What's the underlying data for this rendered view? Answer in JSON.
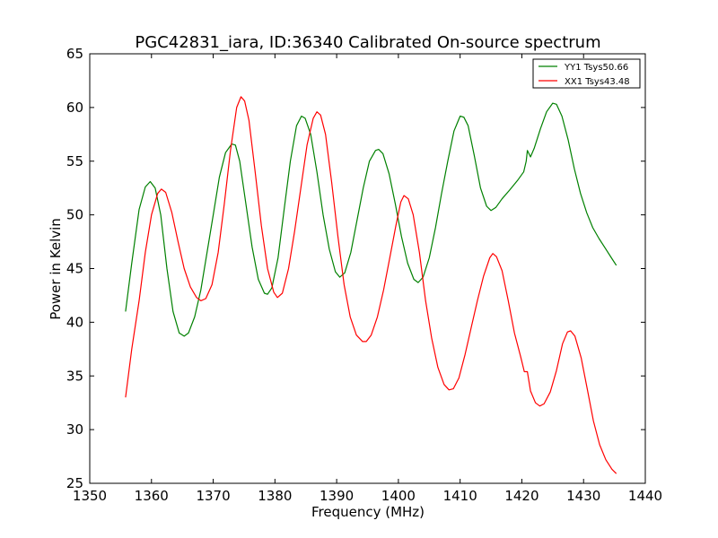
{
  "chart_data": {
    "type": "line",
    "title": "PGC42831_iara, ID:36340 Calibrated On-source spectrum",
    "xlabel": "Frequency (MHz)",
    "ylabel": "Power in Kelvin",
    "xlim": [
      1350,
      1440
    ],
    "ylim": [
      25,
      65
    ],
    "xticks": [
      1350,
      1360,
      1370,
      1380,
      1390,
      1400,
      1410,
      1420,
      1430,
      1440
    ],
    "yticks": [
      25,
      30,
      35,
      40,
      45,
      50,
      55,
      60,
      65
    ],
    "grid": false,
    "legend": "top-right",
    "series": [
      {
        "name": "YY1 Tsys50.66",
        "color": "#008000",
        "points": [
          [
            1355.8,
            41.0
          ],
          [
            1356.8,
            45.5
          ],
          [
            1358.0,
            50.5
          ],
          [
            1359.0,
            52.6
          ],
          [
            1359.8,
            53.1
          ],
          [
            1360.6,
            52.5
          ],
          [
            1361.5,
            50.0
          ],
          [
            1362.5,
            45.0
          ],
          [
            1363.5,
            41.0
          ],
          [
            1364.5,
            39.0
          ],
          [
            1365.3,
            38.7
          ],
          [
            1366.0,
            39.0
          ],
          [
            1367.0,
            40.5
          ],
          [
            1368.0,
            43.0
          ],
          [
            1369.0,
            46.5
          ],
          [
            1370.0,
            50.0
          ],
          [
            1371.0,
            53.5
          ],
          [
            1372.0,
            55.8
          ],
          [
            1373.0,
            56.6
          ],
          [
            1373.6,
            56.5
          ],
          [
            1374.3,
            55.0
          ],
          [
            1375.3,
            51.0
          ],
          [
            1376.3,
            47.0
          ],
          [
            1377.3,
            44.0
          ],
          [
            1378.3,
            42.7
          ],
          [
            1378.8,
            42.6
          ],
          [
            1379.5,
            43.2
          ],
          [
            1380.5,
            46.0
          ],
          [
            1381.5,
            50.5
          ],
          [
            1382.5,
            55.0
          ],
          [
            1383.5,
            58.3
          ],
          [
            1384.3,
            59.2
          ],
          [
            1384.9,
            59.0
          ],
          [
            1385.8,
            57.5
          ],
          [
            1386.8,
            54.0
          ],
          [
            1387.8,
            50.0
          ],
          [
            1388.8,
            46.8
          ],
          [
            1389.8,
            44.7
          ],
          [
            1390.5,
            44.2
          ],
          [
            1391.3,
            44.6
          ],
          [
            1392.3,
            46.5
          ],
          [
            1393.3,
            49.5
          ],
          [
            1394.3,
            52.5
          ],
          [
            1395.3,
            55.0
          ],
          [
            1396.3,
            56.0
          ],
          [
            1396.8,
            56.1
          ],
          [
            1397.5,
            55.7
          ],
          [
            1398.5,
            53.8
          ],
          [
            1399.5,
            51.0
          ],
          [
            1400.5,
            48.0
          ],
          [
            1401.5,
            45.5
          ],
          [
            1402.5,
            44.0
          ],
          [
            1403.2,
            43.7
          ],
          [
            1404.0,
            44.2
          ],
          [
            1405.0,
            46.0
          ],
          [
            1406.0,
            48.8
          ],
          [
            1407.0,
            52.0
          ],
          [
            1408.0,
            55.0
          ],
          [
            1409.0,
            57.8
          ],
          [
            1410.0,
            59.2
          ],
          [
            1410.6,
            59.1
          ],
          [
            1411.3,
            58.3
          ],
          [
            1412.3,
            55.5
          ],
          [
            1413.3,
            52.5
          ],
          [
            1414.3,
            50.8
          ],
          [
            1415.0,
            50.4
          ],
          [
            1415.8,
            50.7
          ],
          [
            1416.8,
            51.5
          ],
          [
            1418.0,
            52.3
          ],
          [
            1419.3,
            53.2
          ],
          [
            1420.3,
            54.0
          ],
          [
            1420.7,
            55.0
          ],
          [
            1420.9,
            56.0
          ],
          [
            1421.4,
            55.4
          ],
          [
            1422.0,
            56.2
          ],
          [
            1423.0,
            58.0
          ],
          [
            1424.0,
            59.6
          ],
          [
            1425.0,
            60.4
          ],
          [
            1425.6,
            60.3
          ],
          [
            1426.5,
            59.2
          ],
          [
            1427.5,
            57.0
          ],
          [
            1428.5,
            54.3
          ],
          [
            1429.5,
            52.0
          ],
          [
            1430.5,
            50.2
          ],
          [
            1431.5,
            48.8
          ],
          [
            1432.5,
            47.8
          ],
          [
            1433.5,
            46.9
          ],
          [
            1434.5,
            46.0
          ],
          [
            1435.3,
            45.3
          ]
        ]
      },
      {
        "name": "XX1 Tsys43.48",
        "color": "#ff0000",
        "points": [
          [
            1355.8,
            33.0
          ],
          [
            1356.8,
            37.5
          ],
          [
            1358.0,
            42.0
          ],
          [
            1359.0,
            46.5
          ],
          [
            1360.0,
            50.0
          ],
          [
            1361.0,
            52.0
          ],
          [
            1361.6,
            52.4
          ],
          [
            1362.3,
            52.1
          ],
          [
            1363.3,
            50.2
          ],
          [
            1364.3,
            47.5
          ],
          [
            1365.3,
            45.0
          ],
          [
            1366.3,
            43.3
          ],
          [
            1367.3,
            42.3
          ],
          [
            1368.0,
            42.0
          ],
          [
            1368.8,
            42.2
          ],
          [
            1369.8,
            43.5
          ],
          [
            1370.8,
            46.5
          ],
          [
            1371.8,
            51.0
          ],
          [
            1372.8,
            56.0
          ],
          [
            1373.8,
            60.0
          ],
          [
            1374.5,
            61.0
          ],
          [
            1375.1,
            60.6
          ],
          [
            1375.8,
            58.8
          ],
          [
            1376.8,
            54.0
          ],
          [
            1377.8,
            49.0
          ],
          [
            1378.8,
            45.0
          ],
          [
            1379.8,
            42.8
          ],
          [
            1380.4,
            42.3
          ],
          [
            1381.2,
            42.7
          ],
          [
            1382.2,
            45.0
          ],
          [
            1383.2,
            48.5
          ],
          [
            1384.2,
            52.5
          ],
          [
            1385.2,
            56.5
          ],
          [
            1386.2,
            59.0
          ],
          [
            1386.8,
            59.6
          ],
          [
            1387.4,
            59.3
          ],
          [
            1388.2,
            57.5
          ],
          [
            1389.2,
            53.0
          ],
          [
            1390.2,
            48.0
          ],
          [
            1391.2,
            43.5
          ],
          [
            1392.2,
            40.5
          ],
          [
            1393.2,
            38.8
          ],
          [
            1394.2,
            38.2
          ],
          [
            1394.8,
            38.2
          ],
          [
            1395.6,
            38.8
          ],
          [
            1396.6,
            40.5
          ],
          [
            1397.6,
            43.0
          ],
          [
            1398.6,
            46.0
          ],
          [
            1399.6,
            49.0
          ],
          [
            1400.4,
            51.2
          ],
          [
            1400.9,
            51.8
          ],
          [
            1401.6,
            51.5
          ],
          [
            1402.4,
            50.0
          ],
          [
            1403.4,
            46.5
          ],
          [
            1404.4,
            42.0
          ],
          [
            1405.4,
            38.5
          ],
          [
            1406.4,
            35.8
          ],
          [
            1407.4,
            34.2
          ],
          [
            1408.2,
            33.7
          ],
          [
            1408.9,
            33.8
          ],
          [
            1409.8,
            34.8
          ],
          [
            1410.8,
            37.0
          ],
          [
            1411.8,
            39.5
          ],
          [
            1412.8,
            42.0
          ],
          [
            1413.8,
            44.3
          ],
          [
            1414.8,
            46.0
          ],
          [
            1415.3,
            46.4
          ],
          [
            1415.9,
            46.1
          ],
          [
            1416.8,
            44.8
          ],
          [
            1417.8,
            42.0
          ],
          [
            1418.8,
            39.0
          ],
          [
            1419.8,
            36.8
          ],
          [
            1420.4,
            35.4
          ],
          [
            1420.9,
            35.4
          ],
          [
            1421.4,
            33.6
          ],
          [
            1422.2,
            32.5
          ],
          [
            1422.9,
            32.2
          ],
          [
            1423.6,
            32.4
          ],
          [
            1424.6,
            33.5
          ],
          [
            1425.6,
            35.5
          ],
          [
            1426.6,
            38.0
          ],
          [
            1427.4,
            39.1
          ],
          [
            1427.9,
            39.2
          ],
          [
            1428.6,
            38.7
          ],
          [
            1429.6,
            36.7
          ],
          [
            1430.6,
            33.8
          ],
          [
            1431.6,
            30.8
          ],
          [
            1432.6,
            28.6
          ],
          [
            1433.6,
            27.2
          ],
          [
            1434.6,
            26.3
          ],
          [
            1435.3,
            25.9
          ]
        ]
      }
    ]
  }
}
